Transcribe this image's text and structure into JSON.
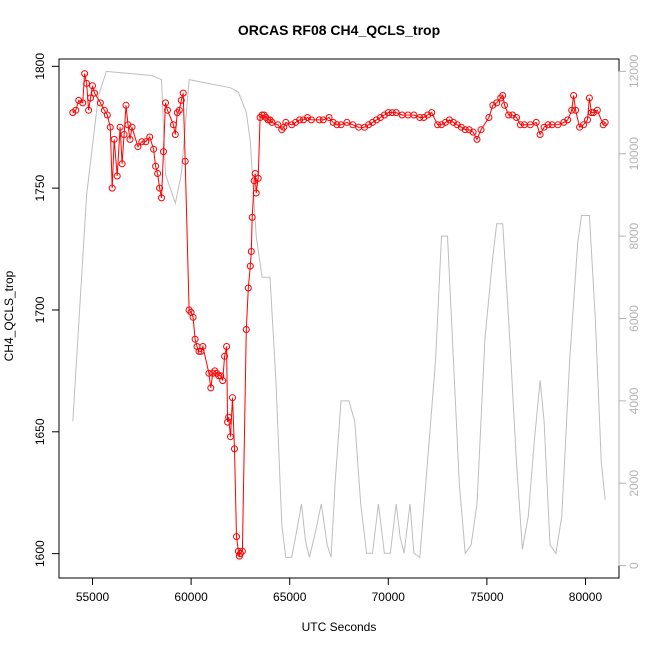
{
  "chart_data": {
    "type": "line",
    "title": "ORCAS RF08 CH4_QCLS_trop",
    "xlabel": "UTC Seconds",
    "ylabel": "CH4_QCLS_trop",
    "xlim": [
      53300,
      81700
    ],
    "ylim": [
      1590,
      1803
    ],
    "y2lim": [
      -300,
      12300
    ],
    "x_ticks": [
      55000,
      60000,
      65000,
      70000,
      75000,
      80000
    ],
    "y_ticks": [
      1600,
      1650,
      1700,
      1750,
      1800
    ],
    "y2_ticks": [
      0,
      2000,
      4000,
      6000,
      8000,
      10000,
      12000
    ],
    "grid": false,
    "series": [
      {
        "role": "CH4 measurement",
        "color": "#ff0000",
        "style": "line+open-circles",
        "points": [
          [
            54000,
            1781
          ],
          [
            54150,
            1782
          ],
          [
            54300,
            1786
          ],
          [
            54500,
            1785
          ],
          [
            54600,
            1797
          ],
          [
            54700,
            1793
          ],
          [
            54800,
            1782
          ],
          [
            54900,
            1787
          ],
          [
            55000,
            1792
          ],
          [
            55100,
            1789
          ],
          [
            55400,
            1785
          ],
          [
            55600,
            1782
          ],
          [
            55750,
            1780
          ],
          [
            55900,
            1775
          ],
          [
            56000,
            1750
          ],
          [
            56100,
            1770
          ],
          [
            56250,
            1755
          ],
          [
            56400,
            1775
          ],
          [
            56500,
            1760
          ],
          [
            56600,
            1772
          ],
          [
            56700,
            1784
          ],
          [
            56800,
            1776
          ],
          [
            56900,
            1770
          ],
          [
            57000,
            1775
          ],
          [
            57300,
            1767
          ],
          [
            57500,
            1769
          ],
          [
            57700,
            1769
          ],
          [
            57900,
            1771
          ],
          [
            58100,
            1766
          ],
          [
            58200,
            1759
          ],
          [
            58300,
            1756
          ],
          [
            58400,
            1750
          ],
          [
            58500,
            1746
          ],
          [
            58600,
            1765
          ],
          [
            58700,
            1785
          ],
          [
            58800,
            1782
          ],
          [
            59100,
            1776
          ],
          [
            59200,
            1772
          ],
          [
            59300,
            1781
          ],
          [
            59400,
            1782
          ],
          [
            59500,
            1786
          ],
          [
            59600,
            1789
          ],
          [
            59700,
            1761
          ],
          [
            59900,
            1700
          ],
          [
            60000,
            1699
          ],
          [
            60100,
            1697
          ],
          [
            60200,
            1688
          ],
          [
            60300,
            1685
          ],
          [
            60400,
            1683
          ],
          [
            60500,
            1683
          ],
          [
            60600,
            1685
          ],
          [
            60900,
            1674
          ],
          [
            61000,
            1668
          ],
          [
            61100,
            1674
          ],
          [
            61200,
            1675
          ],
          [
            61300,
            1674
          ],
          [
            61400,
            1673
          ],
          [
            61500,
            1673
          ],
          [
            61600,
            1671
          ],
          [
            61700,
            1681
          ],
          [
            61800,
            1685
          ],
          [
            61850,
            1654
          ],
          [
            61900,
            1656
          ],
          [
            62000,
            1648
          ],
          [
            62100,
            1664
          ],
          [
            62200,
            1643
          ],
          [
            62300,
            1607
          ],
          [
            62400,
            1601
          ],
          [
            62450,
            1599
          ],
          [
            62500,
            1600
          ],
          [
            62600,
            1601
          ],
          [
            62800,
            1692
          ],
          [
            62900,
            1709
          ],
          [
            63000,
            1718
          ],
          [
            63050,
            1724
          ],
          [
            63100,
            1738
          ],
          [
            63200,
            1753
          ],
          [
            63250,
            1756
          ],
          [
            63300,
            1748
          ],
          [
            63400,
            1754
          ],
          [
            63500,
            1779
          ],
          [
            63600,
            1780
          ],
          [
            63700,
            1780
          ],
          [
            63800,
            1779
          ],
          [
            63900,
            1778
          ],
          [
            64000,
            1778
          ],
          [
            64100,
            1777
          ],
          [
            64400,
            1776
          ],
          [
            64600,
            1774
          ],
          [
            64700,
            1775
          ],
          [
            64800,
            1777
          ],
          [
            65100,
            1776
          ],
          [
            65300,
            1777
          ],
          [
            65500,
            1778
          ],
          [
            65700,
            1778
          ],
          [
            65900,
            1779
          ],
          [
            66100,
            1778
          ],
          [
            66500,
            1778
          ],
          [
            66700,
            1778
          ],
          [
            67000,
            1779
          ],
          [
            67200,
            1777
          ],
          [
            67400,
            1776
          ],
          [
            67600,
            1776
          ],
          [
            67900,
            1777
          ],
          [
            68200,
            1776
          ],
          [
            68500,
            1775
          ],
          [
            68800,
            1775
          ],
          [
            69000,
            1776
          ],
          [
            69200,
            1777
          ],
          [
            69400,
            1778
          ],
          [
            69600,
            1779
          ],
          [
            69800,
            1780
          ],
          [
            70000,
            1781
          ],
          [
            70200,
            1781
          ],
          [
            70400,
            1781
          ],
          [
            70700,
            1780
          ],
          [
            71000,
            1780
          ],
          [
            71300,
            1780
          ],
          [
            71600,
            1779
          ],
          [
            71800,
            1779
          ],
          [
            72000,
            1780
          ],
          [
            72200,
            1781
          ],
          [
            72500,
            1776
          ],
          [
            72700,
            1776
          ],
          [
            72900,
            1777
          ],
          [
            73100,
            1778
          ],
          [
            73300,
            1777
          ],
          [
            73500,
            1776
          ],
          [
            73700,
            1775
          ],
          [
            73900,
            1774
          ],
          [
            74100,
            1774
          ],
          [
            74300,
            1773
          ],
          [
            74500,
            1770
          ],
          [
            74700,
            1774
          ],
          [
            75100,
            1779
          ],
          [
            75300,
            1784
          ],
          [
            75500,
            1785
          ],
          [
            75700,
            1787
          ],
          [
            75800,
            1788
          ],
          [
            75900,
            1784
          ],
          [
            76100,
            1780
          ],
          [
            76300,
            1780
          ],
          [
            76500,
            1779
          ],
          [
            76700,
            1776
          ],
          [
            76900,
            1776
          ],
          [
            77200,
            1776
          ],
          [
            77500,
            1777
          ],
          [
            77700,
            1772
          ],
          [
            77900,
            1775
          ],
          [
            78100,
            1776
          ],
          [
            78300,
            1776
          ],
          [
            78600,
            1776
          ],
          [
            78900,
            1777
          ],
          [
            79100,
            1778
          ],
          [
            79300,
            1782
          ],
          [
            79400,
            1788
          ],
          [
            79500,
            1782
          ],
          [
            79700,
            1775
          ],
          [
            79900,
            1776
          ],
          [
            80100,
            1778
          ],
          [
            80200,
            1787
          ],
          [
            80300,
            1781
          ],
          [
            80400,
            1781
          ],
          [
            80600,
            1782
          ],
          [
            80900,
            1776
          ],
          [
            81000,
            1777
          ]
        ]
      },
      {
        "role": "secondary axis trace",
        "color": "#bebebe",
        "style": "line",
        "points": [
          [
            54000,
            3500
          ],
          [
            54700,
            9000
          ],
          [
            55300,
            11400
          ],
          [
            55700,
            12000
          ],
          [
            58000,
            11900
          ],
          [
            58500,
            11800
          ],
          [
            58700,
            9500
          ],
          [
            59200,
            8800
          ],
          [
            59500,
            9500
          ],
          [
            59900,
            11800
          ],
          [
            62000,
            11600
          ],
          [
            62400,
            11500
          ],
          [
            62800,
            11000
          ],
          [
            63000,
            10300
          ],
          [
            63300,
            8000
          ],
          [
            63600,
            7000
          ],
          [
            64000,
            7000
          ],
          [
            64300,
            4500
          ],
          [
            64600,
            1000
          ],
          [
            64800,
            200
          ],
          [
            65100,
            200
          ],
          [
            65300,
            700
          ],
          [
            65600,
            1500
          ],
          [
            65800,
            600
          ],
          [
            66000,
            200
          ],
          [
            66300,
            800
          ],
          [
            66600,
            1500
          ],
          [
            66900,
            500
          ],
          [
            67100,
            200
          ],
          [
            67300,
            2000
          ],
          [
            67600,
            4000
          ],
          [
            68000,
            4000
          ],
          [
            68300,
            3500
          ],
          [
            68600,
            1500
          ],
          [
            68900,
            300
          ],
          [
            69200,
            300
          ],
          [
            69500,
            1500
          ],
          [
            69800,
            300
          ],
          [
            70100,
            300
          ],
          [
            70400,
            1500
          ],
          [
            70600,
            700
          ],
          [
            70800,
            300
          ],
          [
            71100,
            1500
          ],
          [
            71300,
            300
          ],
          [
            71600,
            200
          ],
          [
            71900,
            2000
          ],
          [
            72400,
            5000
          ],
          [
            72700,
            8000
          ],
          [
            73000,
            8000
          ],
          [
            73300,
            5000
          ],
          [
            73600,
            2000
          ],
          [
            73900,
            300
          ],
          [
            74200,
            500
          ],
          [
            74500,
            1500
          ],
          [
            74900,
            5500
          ],
          [
            75300,
            7500
          ],
          [
            75500,
            8300
          ],
          [
            75800,
            8300
          ],
          [
            76100,
            6000
          ],
          [
            76500,
            2500
          ],
          [
            76800,
            400
          ],
          [
            77100,
            1200
          ],
          [
            77400,
            3000
          ],
          [
            77700,
            4500
          ],
          [
            77900,
            3500
          ],
          [
            78200,
            500
          ],
          [
            78500,
            300
          ],
          [
            78800,
            1200
          ],
          [
            79200,
            5000
          ],
          [
            79600,
            7800
          ],
          [
            79800,
            8500
          ],
          [
            80200,
            8500
          ],
          [
            80500,
            6000
          ],
          [
            80800,
            2500
          ],
          [
            81000,
            1600
          ]
        ]
      }
    ]
  }
}
